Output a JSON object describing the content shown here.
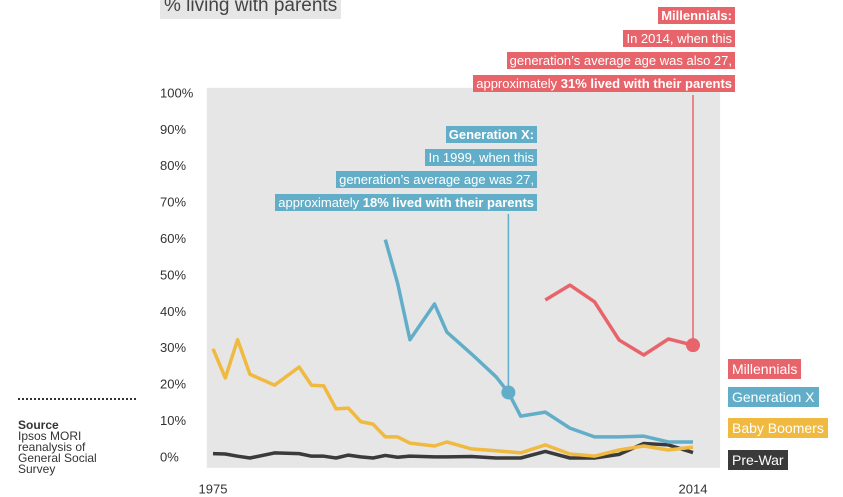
{
  "chart_data": {
    "type": "line",
    "title": "% living with parents",
    "xlim": [
      1974.5,
      2016.2
    ],
    "xticks": [
      1975,
      2014
    ],
    "ylim": [
      -2.7,
      101.7
    ],
    "yticks": [
      {
        "value": 0,
        "label": "0%"
      },
      {
        "value": 10,
        "label": "10%"
      },
      {
        "value": 20,
        "label": "20%"
      },
      {
        "value": 30,
        "label": "30%"
      },
      {
        "value": 40,
        "label": "40%"
      },
      {
        "value": 50,
        "label": "50%"
      },
      {
        "value": 60,
        "label": "60%"
      },
      {
        "value": 70,
        "label": "70%"
      },
      {
        "value": 80,
        "label": "80%"
      },
      {
        "value": 90,
        "label": "90%"
      },
      {
        "value": 100,
        "label": "100%"
      }
    ],
    "series": [
      {
        "name": "Millennials",
        "color": "#e8646b",
        "x": [
          2002,
          2004,
          2006,
          2008,
          2010,
          2012,
          2014
        ],
        "values": [
          43.4,
          47.5,
          42.9,
          32.4,
          28.3,
          32.7,
          31
        ]
      },
      {
        "name": "Generation X",
        "color": "#62aec8",
        "x": [
          1989,
          1990,
          1991,
          1993,
          1994,
          1996,
          1998,
          1999,
          2000,
          2002,
          2004,
          2006,
          2008,
          2010,
          2012,
          2014
        ],
        "values": [
          60,
          48,
          32.5,
          42.3,
          34.6,
          28.6,
          22.3,
          18,
          11.5,
          12.6,
          8.2,
          5.8,
          5.8,
          6,
          4.4,
          4.4
        ]
      },
      {
        "name": "Baby Boomers",
        "color": "#f0b940",
        "x": [
          1975,
          1976,
          1977,
          1978,
          1980,
          1982,
          1983,
          1984,
          1985,
          1986,
          1987,
          1988,
          1989,
          1990,
          1991,
          1993,
          1994,
          1996,
          1998,
          2000,
          2002,
          2004,
          2006,
          2008,
          2010,
          2012,
          2014
        ],
        "values": [
          30,
          22,
          32.5,
          23,
          20,
          25,
          20,
          19.8,
          13.5,
          13.7,
          10,
          9.3,
          5.8,
          5.8,
          4.1,
          3.3,
          4.4,
          2.5,
          2,
          1.4,
          3.6,
          1.1,
          0.5,
          2.2,
          3.3,
          2.2,
          3
        ]
      },
      {
        "name": "Pre-War",
        "color": "#3a3a3a",
        "x": [
          1975,
          1976,
          1977,
          1978,
          1980,
          1982,
          1983,
          1984,
          1985,
          1986,
          1987,
          1988,
          1989,
          1990,
          1991,
          1993,
          1994,
          1996,
          1998,
          2000,
          2002,
          2004,
          2006,
          2008,
          2010,
          2012,
          2014
        ],
        "values": [
          1.2,
          1.1,
          0.5,
          0,
          1.4,
          1.2,
          0.5,
          0.5,
          0,
          0.8,
          0.3,
          0,
          0.7,
          0.2,
          0.5,
          0.3,
          0.3,
          0.4,
          0,
          0,
          1.8,
          0,
          0,
          1,
          4,
          3.6,
          1.5
        ]
      }
    ],
    "annotations": [
      {
        "title": "Millennials:",
        "lines": [
          "In 2014, when this",
          "generation’s average age was also 27,"
        ],
        "prefix": "approximately ",
        "bold": "31% lived with their parents"
      },
      {
        "title": "Generation X:",
        "lines": [
          "In 1999, when this",
          "generation’s average age was 27,"
        ],
        "prefix": "approximately ",
        "bold": "18% lived with their parents"
      }
    ],
    "source": {
      "label": "Source",
      "lines": [
        "Ipsos MORI",
        "reanalysis of",
        "General Social",
        "Survey"
      ]
    }
  }
}
